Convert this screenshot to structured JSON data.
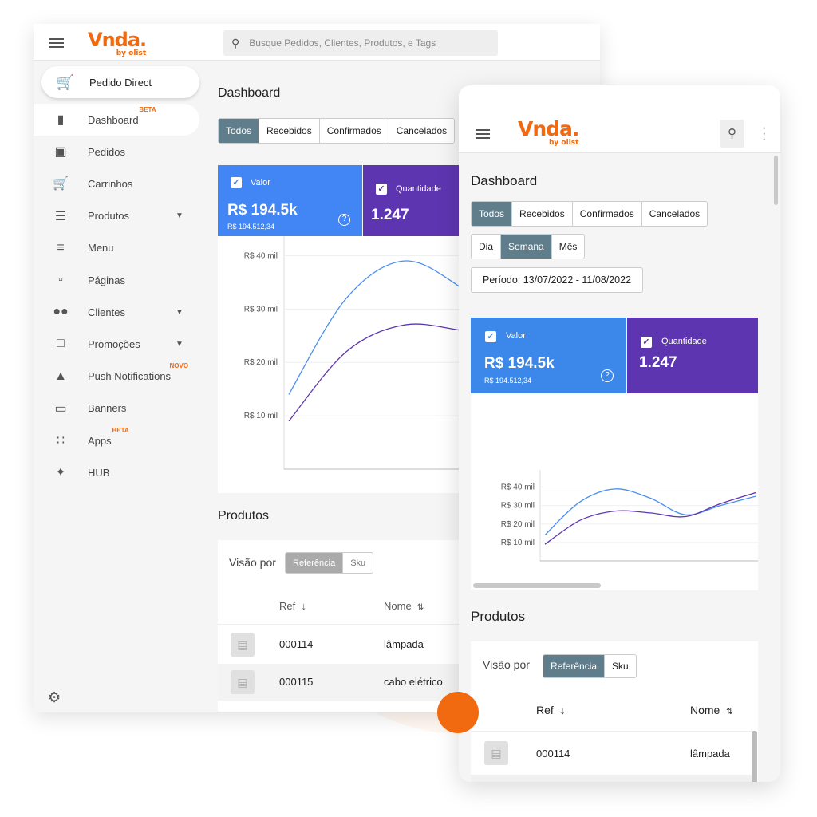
{
  "brand": {
    "name": "Vnda.",
    "sub": "by olist",
    "color": "#f26a10"
  },
  "desktop": {
    "search_placeholder": "Busque Pedidos, Clientes, Produtos, e Tags",
    "pedido_direct": "Pedido Direct",
    "sidebar": [
      {
        "label": "Dashboard",
        "icon": "bar-chart-icon",
        "badge": "BETA",
        "active": true
      },
      {
        "label": "Pedidos",
        "icon": "inbox-icon"
      },
      {
        "label": "Carrinhos",
        "icon": "cart-icon"
      },
      {
        "label": "Produtos",
        "icon": "list-icon",
        "caret": true
      },
      {
        "label": "Menu",
        "icon": "menu-icon"
      },
      {
        "label": "Páginas",
        "icon": "page-icon"
      },
      {
        "label": "Clientes",
        "icon": "people-icon",
        "caret": true
      },
      {
        "label": "Promoções",
        "icon": "bookmark-icon",
        "caret": true
      },
      {
        "label": "Push Notifications",
        "icon": "bell-icon",
        "badge": "NOVO"
      },
      {
        "label": "Banners",
        "icon": "monitor-icon"
      },
      {
        "label": "Apps",
        "icon": "apps-icon",
        "badge": "BETA"
      },
      {
        "label": "HUB",
        "icon": "hub-icon"
      }
    ],
    "title": "Dashboard",
    "status_tabs": [
      "Todos",
      "Recebidos",
      "Confirmados",
      "Cancelados"
    ],
    "valor": {
      "label": "Valor",
      "value": "R$ 194.5k",
      "exact": "R$ 194.512,34"
    },
    "quantidade": {
      "label": "Quantidade",
      "value": "1.247"
    },
    "produtos_title": "Produtos",
    "visao_por": "Visão por",
    "visao_options": [
      "Referência",
      "Sku"
    ],
    "columns": [
      "Ref",
      "Nome"
    ],
    "rows": [
      {
        "ref": "000114",
        "nome": "lâmpada"
      },
      {
        "ref": "000115",
        "nome": "cabo elétrico"
      }
    ]
  },
  "mobile": {
    "title": "Dashboard",
    "status_tabs": [
      "Todos",
      "Recebidos",
      "Confirmados",
      "Cancelados"
    ],
    "period_tabs": [
      "Dia",
      "Semana",
      "Mês"
    ],
    "periodo": "Período: 13/07/2022 - 11/08/2022",
    "valor": {
      "label": "Valor",
      "value": "R$ 194.5k",
      "exact": "R$ 194.512,34"
    },
    "quantidade": {
      "label": "Quantidade",
      "value": "1.247"
    },
    "produtos_title": "Produtos",
    "visao_por": "Visão por",
    "visao_options": [
      "Referência",
      "Sku"
    ],
    "columns": [
      "Ref",
      "Nome"
    ],
    "rows": [
      {
        "ref": "000114",
        "nome": "lâmpada"
      }
    ]
  },
  "chart_data": {
    "type": "line",
    "yticks": [
      "R$ 10 mil",
      "R$ 20 mil",
      "R$ 30 mil",
      "R$ 40 mil"
    ],
    "ylim": [
      0,
      45
    ],
    "series": [
      {
        "key": "valor",
        "color": "#4a8ff0",
        "values": [
          14,
          32,
          39,
          34,
          25,
          30,
          35
        ]
      },
      {
        "key": "quantidade",
        "color": "#5e35b1",
        "values": [
          9,
          22,
          27,
          26,
          24,
          31,
          37
        ]
      }
    ]
  }
}
